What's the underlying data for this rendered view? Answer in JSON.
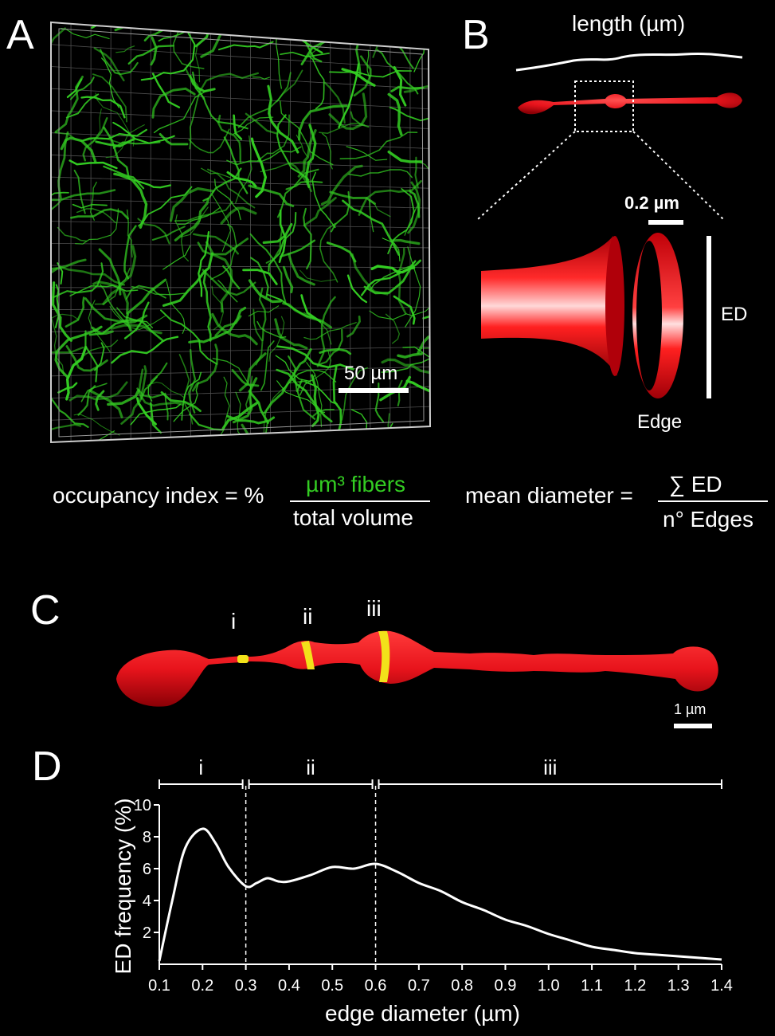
{
  "panels": {
    "a": "A",
    "b": "B",
    "c": "C",
    "d": "D"
  },
  "panel_a": {
    "scale_bar": "50 µm"
  },
  "panel_b": {
    "length_label": "length (µm)",
    "scale_bar": "0.2 µm",
    "ed_label": "ED",
    "edge_label": "Edge"
  },
  "formulas": {
    "occupancy_lhs": "occupancy index = %",
    "occupancy_num": "µm³ fibers",
    "occupancy_den": "total volume",
    "mean_lhs": "mean diameter =",
    "mean_num": "∑ ED",
    "mean_den": "n° Edges"
  },
  "panel_c": {
    "markers": [
      "i",
      "ii",
      "iii"
    ],
    "scale_bar": "1 µm"
  },
  "colors": {
    "fibers": "#33cc22",
    "fiber_model": "#e8141c",
    "edge_ring": "#f2e21a",
    "background": "#000000"
  },
  "chart_data": {
    "type": "line",
    "xlabel": "edge diameter (µm)",
    "ylabel": "ED frequency (%)",
    "xlim": [
      0.1,
      1.4
    ],
    "ylim": [
      0,
      10
    ],
    "x_ticks": [
      "0.1",
      "0.2",
      "0.3",
      "0.4",
      "0.5",
      "0.6",
      "0.7",
      "0.8",
      "0.9",
      "1.0",
      "1.1",
      "1.2",
      "1.3",
      "1.4"
    ],
    "y_ticks": [
      "2",
      "4",
      "6",
      "8",
      "10"
    ],
    "ranges": [
      {
        "label": "i",
        "from": 0.1,
        "to": 0.3
      },
      {
        "label": "ii",
        "from": 0.3,
        "to": 0.6
      },
      {
        "label": "iii",
        "from": 0.6,
        "to": 1.4
      }
    ],
    "dividers": [
      0.3,
      0.6
    ],
    "series": [
      {
        "x": [
          0.1,
          0.13,
          0.16,
          0.2,
          0.23,
          0.26,
          0.3,
          0.325,
          0.35,
          0.375,
          0.4,
          0.45,
          0.5,
          0.55,
          0.6,
          0.65,
          0.7,
          0.75,
          0.8,
          0.85,
          0.9,
          0.95,
          1.0,
          1.05,
          1.1,
          1.15,
          1.2,
          1.25,
          1.3,
          1.35,
          1.4
        ],
        "y": [
          0.2,
          4.0,
          7.3,
          8.5,
          7.6,
          6.1,
          4.9,
          5.1,
          5.4,
          5.2,
          5.2,
          5.6,
          6.1,
          6.0,
          6.3,
          5.8,
          5.1,
          4.6,
          3.9,
          3.4,
          2.8,
          2.4,
          1.9,
          1.5,
          1.1,
          0.9,
          0.7,
          0.6,
          0.5,
          0.4,
          0.3
        ]
      }
    ]
  }
}
